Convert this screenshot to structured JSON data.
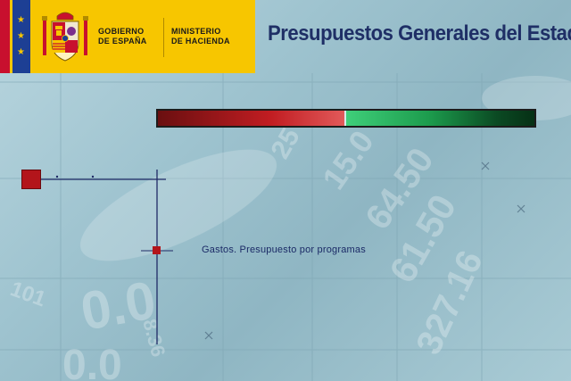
{
  "header": {
    "government": [
      "GOBIERNO",
      "DE ESPAÑA"
    ],
    "ministry": [
      "MINISTERIO",
      "DE HACIENDA"
    ]
  },
  "title": "Presupuestos Generales del Estado",
  "progress": {
    "value": 0.5
  },
  "menu": {
    "item_label": "Gastos. Presupuesto por programas"
  },
  "background": {
    "decorative_text": [
      "15.0",
      "64.50",
      "61.50",
      "327.16",
      "0.0",
      "0.0",
      "101",
      "8.36",
      "25"
    ]
  },
  "colors": {
    "header_yellow": "#f7c600",
    "title_blue": "#1f2f66",
    "progress_red": "#c11d22",
    "progress_green": "#1c9a4c",
    "accent_red": "#b3151b",
    "line_navy": "#1f2a66"
  }
}
